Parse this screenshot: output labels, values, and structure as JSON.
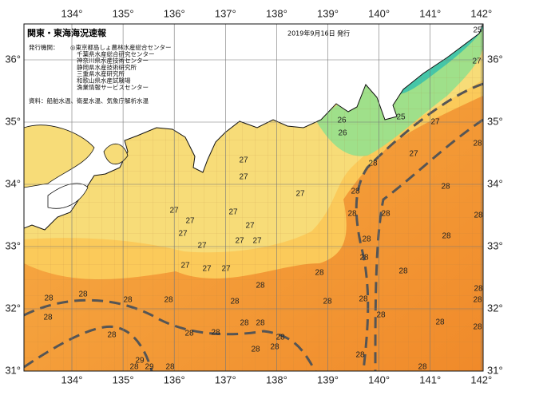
{
  "map": {
    "title": "関東・東海海況速報",
    "issued": "2019年9月16日 発行",
    "issuers_heading": "発行機関：",
    "issuers": [
      "◎東京都島しょ農林水産総合センター",
      "千葉県水産総合研究センター",
      "神奈川県水産技術センター",
      "静岡県水産技術研究所",
      "三重県水産研究所",
      "和歌山県水産試験場",
      "漁業情報サービスセンター"
    ],
    "source": "資料：船舶水温、衛星水温、気象庁解析水温",
    "lon_ticks": [
      {
        "value": 134,
        "label": "134°"
      },
      {
        "value": 135,
        "label": "135°"
      },
      {
        "value": 136,
        "label": "136°"
      },
      {
        "value": 137,
        "label": "137°"
      },
      {
        "value": 138,
        "label": "138°"
      },
      {
        "value": 139,
        "label": "139°"
      },
      {
        "value": 140,
        "label": "140°"
      },
      {
        "value": 141,
        "label": "141°"
      },
      {
        "value": 142,
        "label": "142°"
      }
    ],
    "lat_ticks": [
      {
        "value": 31,
        "label": "31°"
      },
      {
        "value": 32,
        "label": "32°"
      },
      {
        "value": 33,
        "label": "33°"
      },
      {
        "value": 34,
        "label": "34°"
      },
      {
        "value": 35,
        "label": "35°"
      },
      {
        "value": 36,
        "label": "36°"
      }
    ],
    "contour_labels": [
      25,
      27,
      25,
      26,
      26,
      27,
      27,
      27,
      28,
      28,
      27,
      27,
      28,
      28,
      27,
      27,
      27,
      28,
      28,
      27,
      27,
      28,
      27,
      27,
      27,
      28,
      28,
      27,
      27,
      27,
      28,
      28,
      28,
      28,
      28,
      28,
      28,
      28,
      28,
      28,
      28,
      28,
      28,
      28,
      28,
      28,
      28,
      28,
      28,
      28,
      28,
      28,
      28,
      29,
      28,
      29,
      28,
      28,
      28,
      28,
      28
    ]
  }
}
